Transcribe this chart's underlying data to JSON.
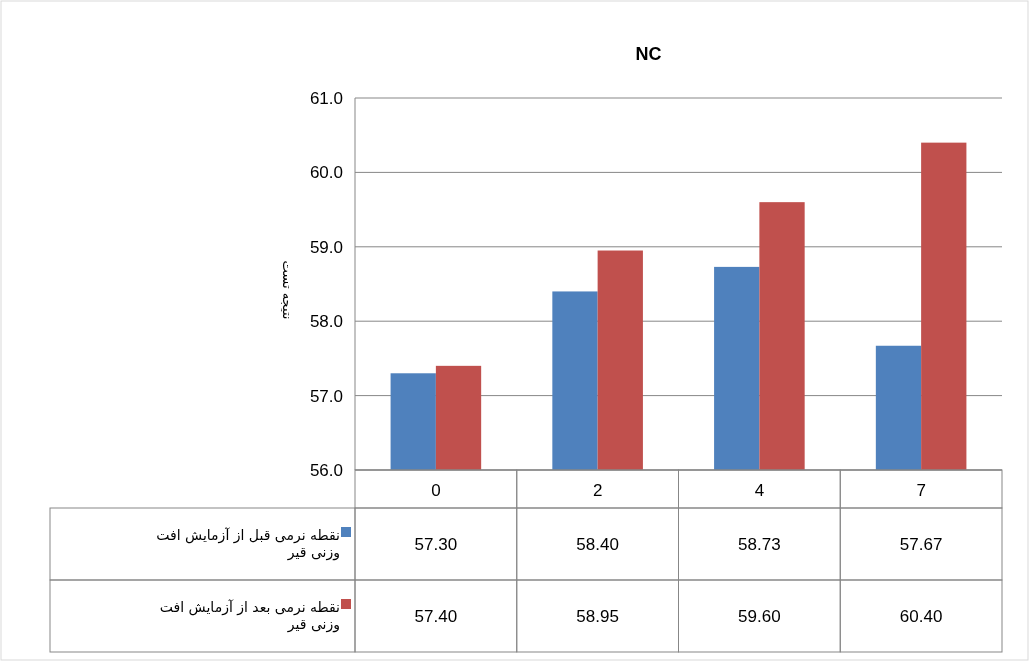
{
  "chart_data": {
    "type": "bar",
    "title": "NC",
    "ylabel": "نتیجه تست",
    "categories": [
      "0",
      "2",
      "4",
      "7"
    ],
    "series": [
      {
        "name": "نقطه نرمی قبل از آزمایش افت وزنی قیر",
        "color": "#4f81bd",
        "values": [
          57.3,
          58.4,
          58.73,
          57.67
        ],
        "value_labels": [
          "57.30",
          "58.40",
          "58.73",
          "57.67"
        ]
      },
      {
        "name": "نقطه نرمی بعد از آزمایش افت وزنی قیر",
        "color": "#c0504d",
        "values": [
          57.4,
          58.95,
          59.6,
          60.4
        ],
        "value_labels": [
          "57.40",
          "58.95",
          "59.60",
          "60.40"
        ]
      }
    ],
    "ylim": [
      56,
      61
    ],
    "yticks": [
      {
        "value": 56,
        "label": "56.0"
      },
      {
        "value": 57,
        "label": "57.0"
      },
      {
        "value": 58,
        "label": "58.0"
      },
      {
        "value": 59,
        "label": "59.0"
      },
      {
        "value": 60,
        "label": "60.0"
      },
      {
        "value": 61,
        "label": "61.0"
      }
    ],
    "grid": "y",
    "legend": "bottom"
  }
}
